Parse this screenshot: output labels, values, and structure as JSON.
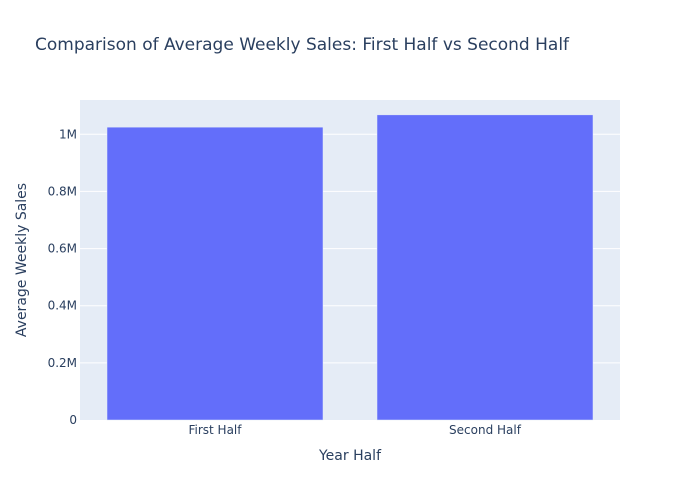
{
  "chart_data": {
    "type": "bar",
    "title": "Comparison of Average Weekly Sales: First Half vs Second Half",
    "xlabel": "Year Half",
    "ylabel": "Average Weekly Sales",
    "categories": [
      "First Half",
      "Second Half"
    ],
    "values": [
      1025000,
      1068000
    ],
    "ylim": [
      0,
      1120000
    ],
    "yticks": [
      0,
      200000,
      400000,
      600000,
      800000,
      1000000
    ],
    "ytick_labels": [
      "0",
      "0.2M",
      "0.4M",
      "0.6M",
      "0.8M",
      "1M"
    ],
    "grid": true,
    "legend": "none",
    "colors": {
      "bar": "#636efa",
      "plot_background": "#e5ecf6",
      "gridline": "#ffffff",
      "text": "#2a3f5f"
    }
  }
}
